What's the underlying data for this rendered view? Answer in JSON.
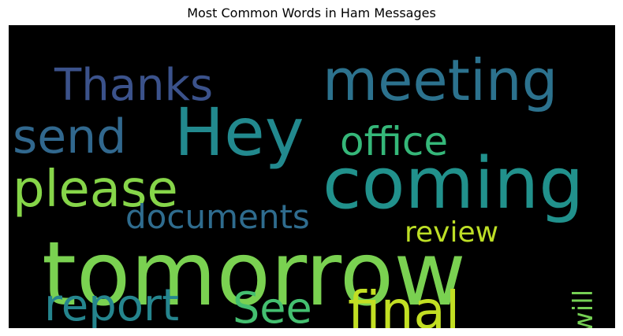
{
  "chart_data": {
    "type": "wordcloud",
    "title": "Most Common Words in Ham Messages",
    "background": "#000000",
    "colormap": "viridis",
    "words": [
      {
        "text": "tomorrow",
        "weight": 1.0,
        "color": "#7ad151"
      },
      {
        "text": "coming",
        "weight": 0.78,
        "color": "#21918c"
      },
      {
        "text": "Hey",
        "weight": 0.72,
        "color": "#22898e"
      },
      {
        "text": "meeting",
        "weight": 0.62,
        "color": "#2c728e"
      },
      {
        "text": "final",
        "weight": 0.58,
        "color": "#c2df23"
      },
      {
        "text": "please",
        "weight": 0.55,
        "color": "#86d549"
      },
      {
        "text": "send",
        "weight": 0.52,
        "color": "#31688e"
      },
      {
        "text": "Thanks",
        "weight": 0.48,
        "color": "#3b528b"
      },
      {
        "text": "report",
        "weight": 0.46,
        "color": "#25858e"
      },
      {
        "text": "See",
        "weight": 0.46,
        "color": "#44bf70"
      },
      {
        "text": "office",
        "weight": 0.42,
        "color": "#35b779"
      },
      {
        "text": "documents",
        "weight": 0.34,
        "color": "#2f6c8e"
      },
      {
        "text": "review",
        "weight": 0.3,
        "color": "#bddf26"
      },
      {
        "text": "will",
        "weight": 0.28,
        "color": "#75d054"
      }
    ]
  }
}
